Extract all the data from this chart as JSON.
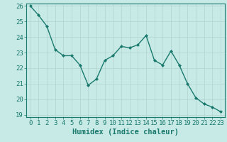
{
  "x": [
    0,
    1,
    2,
    3,
    4,
    5,
    6,
    7,
    8,
    9,
    10,
    11,
    12,
    13,
    14,
    15,
    16,
    17,
    18,
    19,
    20,
    21,
    22,
    23
  ],
  "y": [
    26.0,
    25.4,
    24.7,
    23.2,
    22.8,
    22.8,
    22.2,
    20.9,
    21.3,
    22.5,
    22.8,
    23.4,
    23.3,
    23.5,
    24.1,
    22.5,
    22.2,
    23.1,
    22.2,
    21.0,
    20.1,
    19.7,
    19.5,
    19.2
  ],
  "line_color": "#1a7a6e",
  "marker": "D",
  "marker_size": 2.0,
  "bg_color": "#c8eae6",
  "grid_color": "#b0d4d0",
  "xlabel": "Humidex (Indice chaleur)",
  "ylim": [
    19,
    26
  ],
  "xlim": [
    -0.5,
    23.5
  ],
  "yticks": [
    19,
    20,
    21,
    22,
    23,
    24,
    25,
    26
  ],
  "xticks": [
    0,
    1,
    2,
    3,
    4,
    5,
    6,
    7,
    8,
    9,
    10,
    11,
    12,
    13,
    14,
    15,
    16,
    17,
    18,
    19,
    20,
    21,
    22,
    23
  ],
  "xlabel_fontsize": 7.5,
  "tick_fontsize": 6.5,
  "line_width": 1.0
}
